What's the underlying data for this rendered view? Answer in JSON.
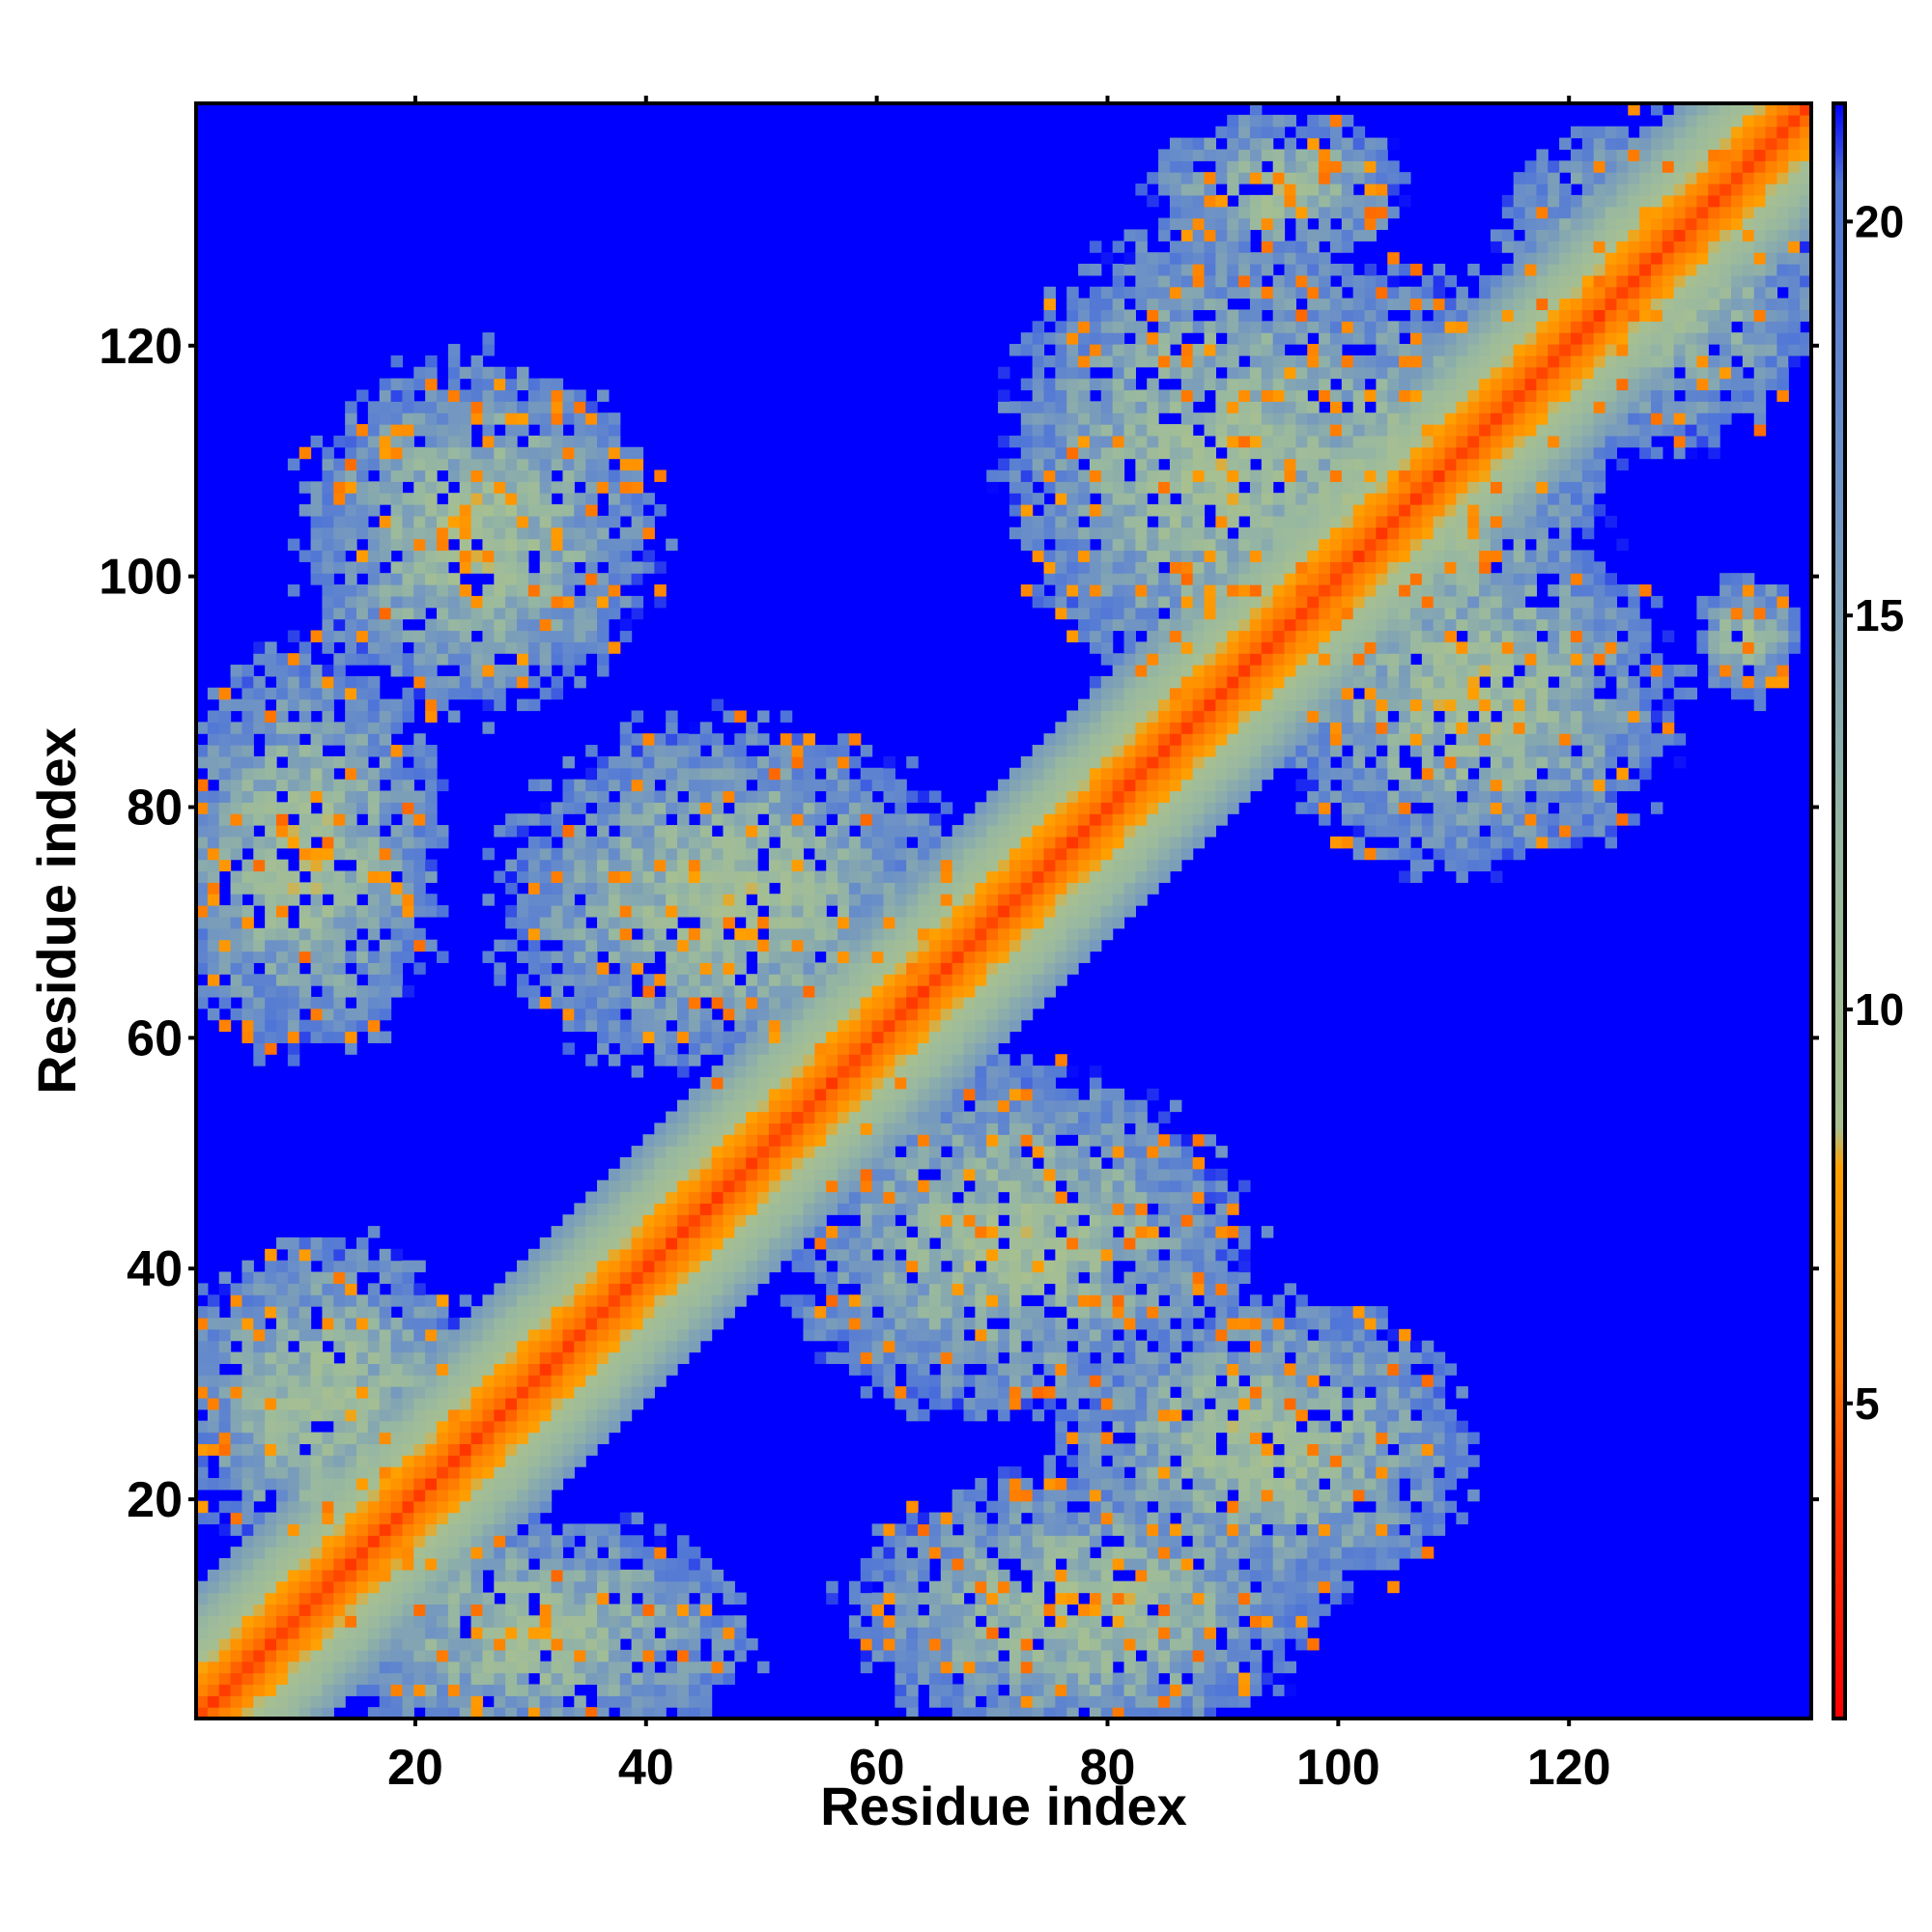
{
  "chart_data": {
    "type": "heatmap",
    "title": "",
    "xlabel": "Residue index",
    "ylabel": "Residue index",
    "xlim": [
      1,
      141
    ],
    "ylim": [
      1,
      141
    ],
    "n_residues": 141,
    "x_ticks": [
      20,
      40,
      60,
      80,
      100,
      120
    ],
    "y_ticks": [
      20,
      40,
      60,
      80,
      100,
      120
    ],
    "colorbar": {
      "range": [
        1,
        21.5
      ],
      "ticks": [
        5,
        10,
        15,
        20
      ],
      "tick_labels": [
        "5",
        "10",
        "15",
        "20"
      ],
      "stops": [
        {
          "value": 1,
          "color": "#ff0000"
        },
        {
          "value": 3.5,
          "color": "#ff3000"
        },
        {
          "value": 5.5,
          "color": "#ff7a00"
        },
        {
          "value": 8,
          "color": "#ffa000"
        },
        {
          "value": 8.5,
          "color": "#a8c090"
        },
        {
          "value": 12,
          "color": "#98b8a0"
        },
        {
          "value": 17,
          "color": "#6a8fc8"
        },
        {
          "value": 20.5,
          "color": "#4f75d8"
        },
        {
          "value": 21.5,
          "color": "#0000ff"
        }
      ]
    },
    "diagonal": {
      "max_offset_shown": 11
    },
    "contact_regions": [
      {
        "x_center": 25,
        "y_center": 104,
        "x_half": 14,
        "y_half": 14
      },
      {
        "x_center": 10,
        "y_center": 76,
        "x_half": 11,
        "y_half": 16
      },
      {
        "x_center": 47,
        "y_center": 72,
        "x_half": 18,
        "y_half": 14
      },
      {
        "x_center": 12,
        "y_center": 28,
        "x_half": 12,
        "y_half": 13
      },
      {
        "x_center": 30,
        "y_center": 8,
        "x_half": 17,
        "y_half": 9
      },
      {
        "x_center": 72,
        "y_center": 42,
        "x_half": 18,
        "y_half": 14
      },
      {
        "x_center": 78,
        "y_center": 10,
        "x_half": 18,
        "y_half": 11
      },
      {
        "x_center": 94,
        "y_center": 24,
        "x_half": 16,
        "y_half": 12
      },
      {
        "x_center": 105,
        "y_center": 106,
        "x_half": 17,
        "y_half": 19
      },
      {
        "x_center": 90,
        "y_center": 110,
        "x_half": 17,
        "y_half": 19
      },
      {
        "x_center": 112,
        "y_center": 90,
        "x_half": 16,
        "y_half": 14
      },
      {
        "x_center": 95,
        "y_center": 134,
        "x_half": 10,
        "y_half": 6
      },
      {
        "x_center": 128,
        "y_center": 126,
        "x_half": 13,
        "y_half": 13
      },
      {
        "x_center": 136,
        "y_center": 95,
        "x_half": 4,
        "y_half": 5
      }
    ]
  }
}
